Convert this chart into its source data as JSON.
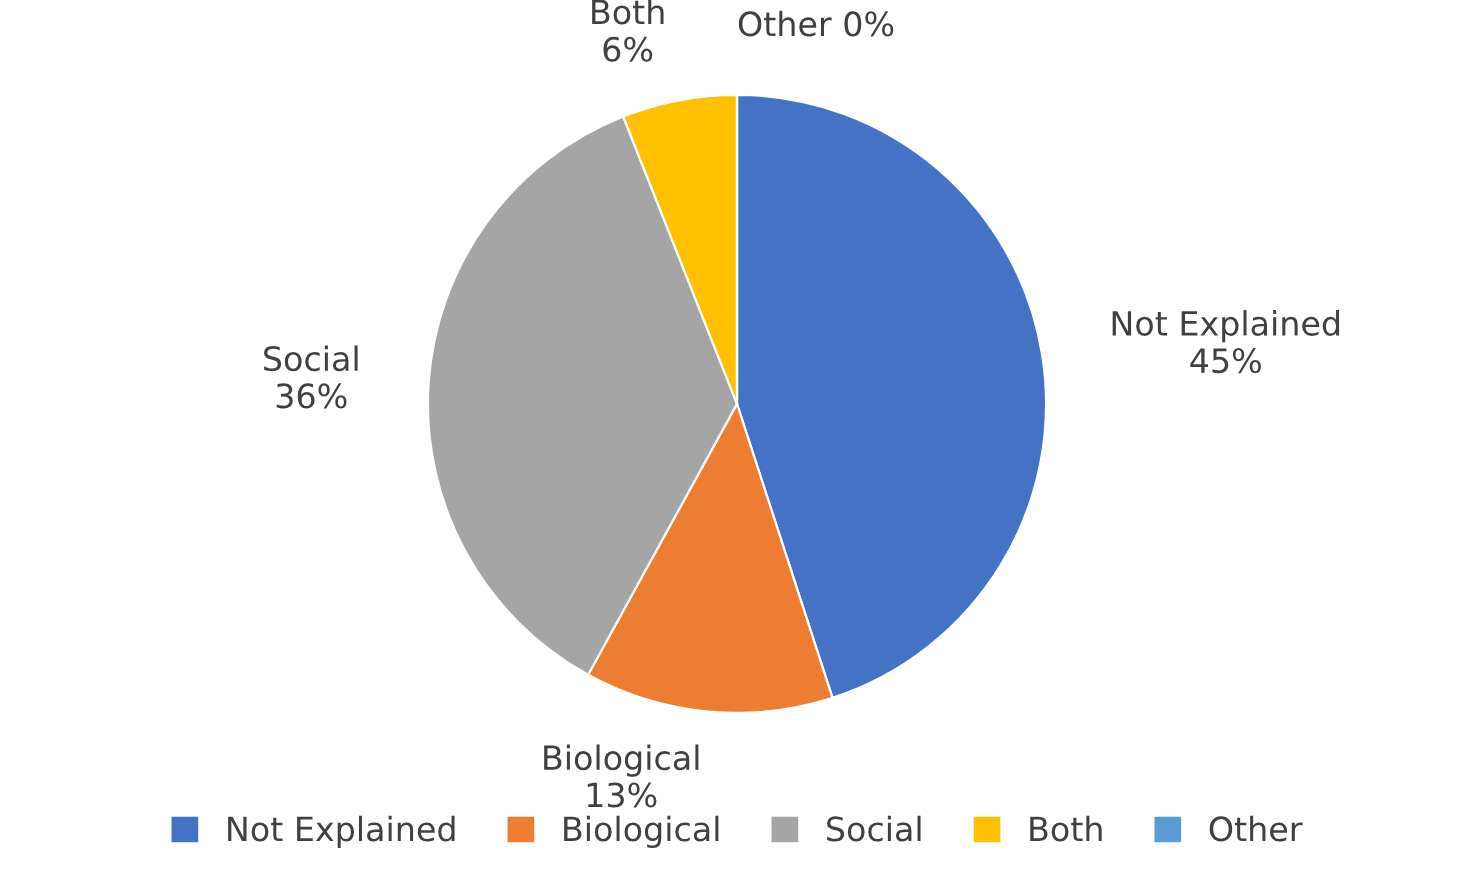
{
  "chart_data": {
    "type": "pie",
    "categories": [
      "Not Explained",
      "Biological",
      "Social",
      "Both",
      "Other"
    ],
    "values": [
      45,
      13,
      36,
      6,
      0
    ],
    "colors": [
      "#4472c4",
      "#ed7d31",
      "#a5a5a5",
      "#ffc000",
      "#5b9bd5"
    ],
    "value_labels": [
      "Not Explained\n45%",
      "Biological\n13%",
      "Social\n36%",
      "Both\n6%",
      "Other 0%"
    ],
    "legend": "bottom"
  }
}
